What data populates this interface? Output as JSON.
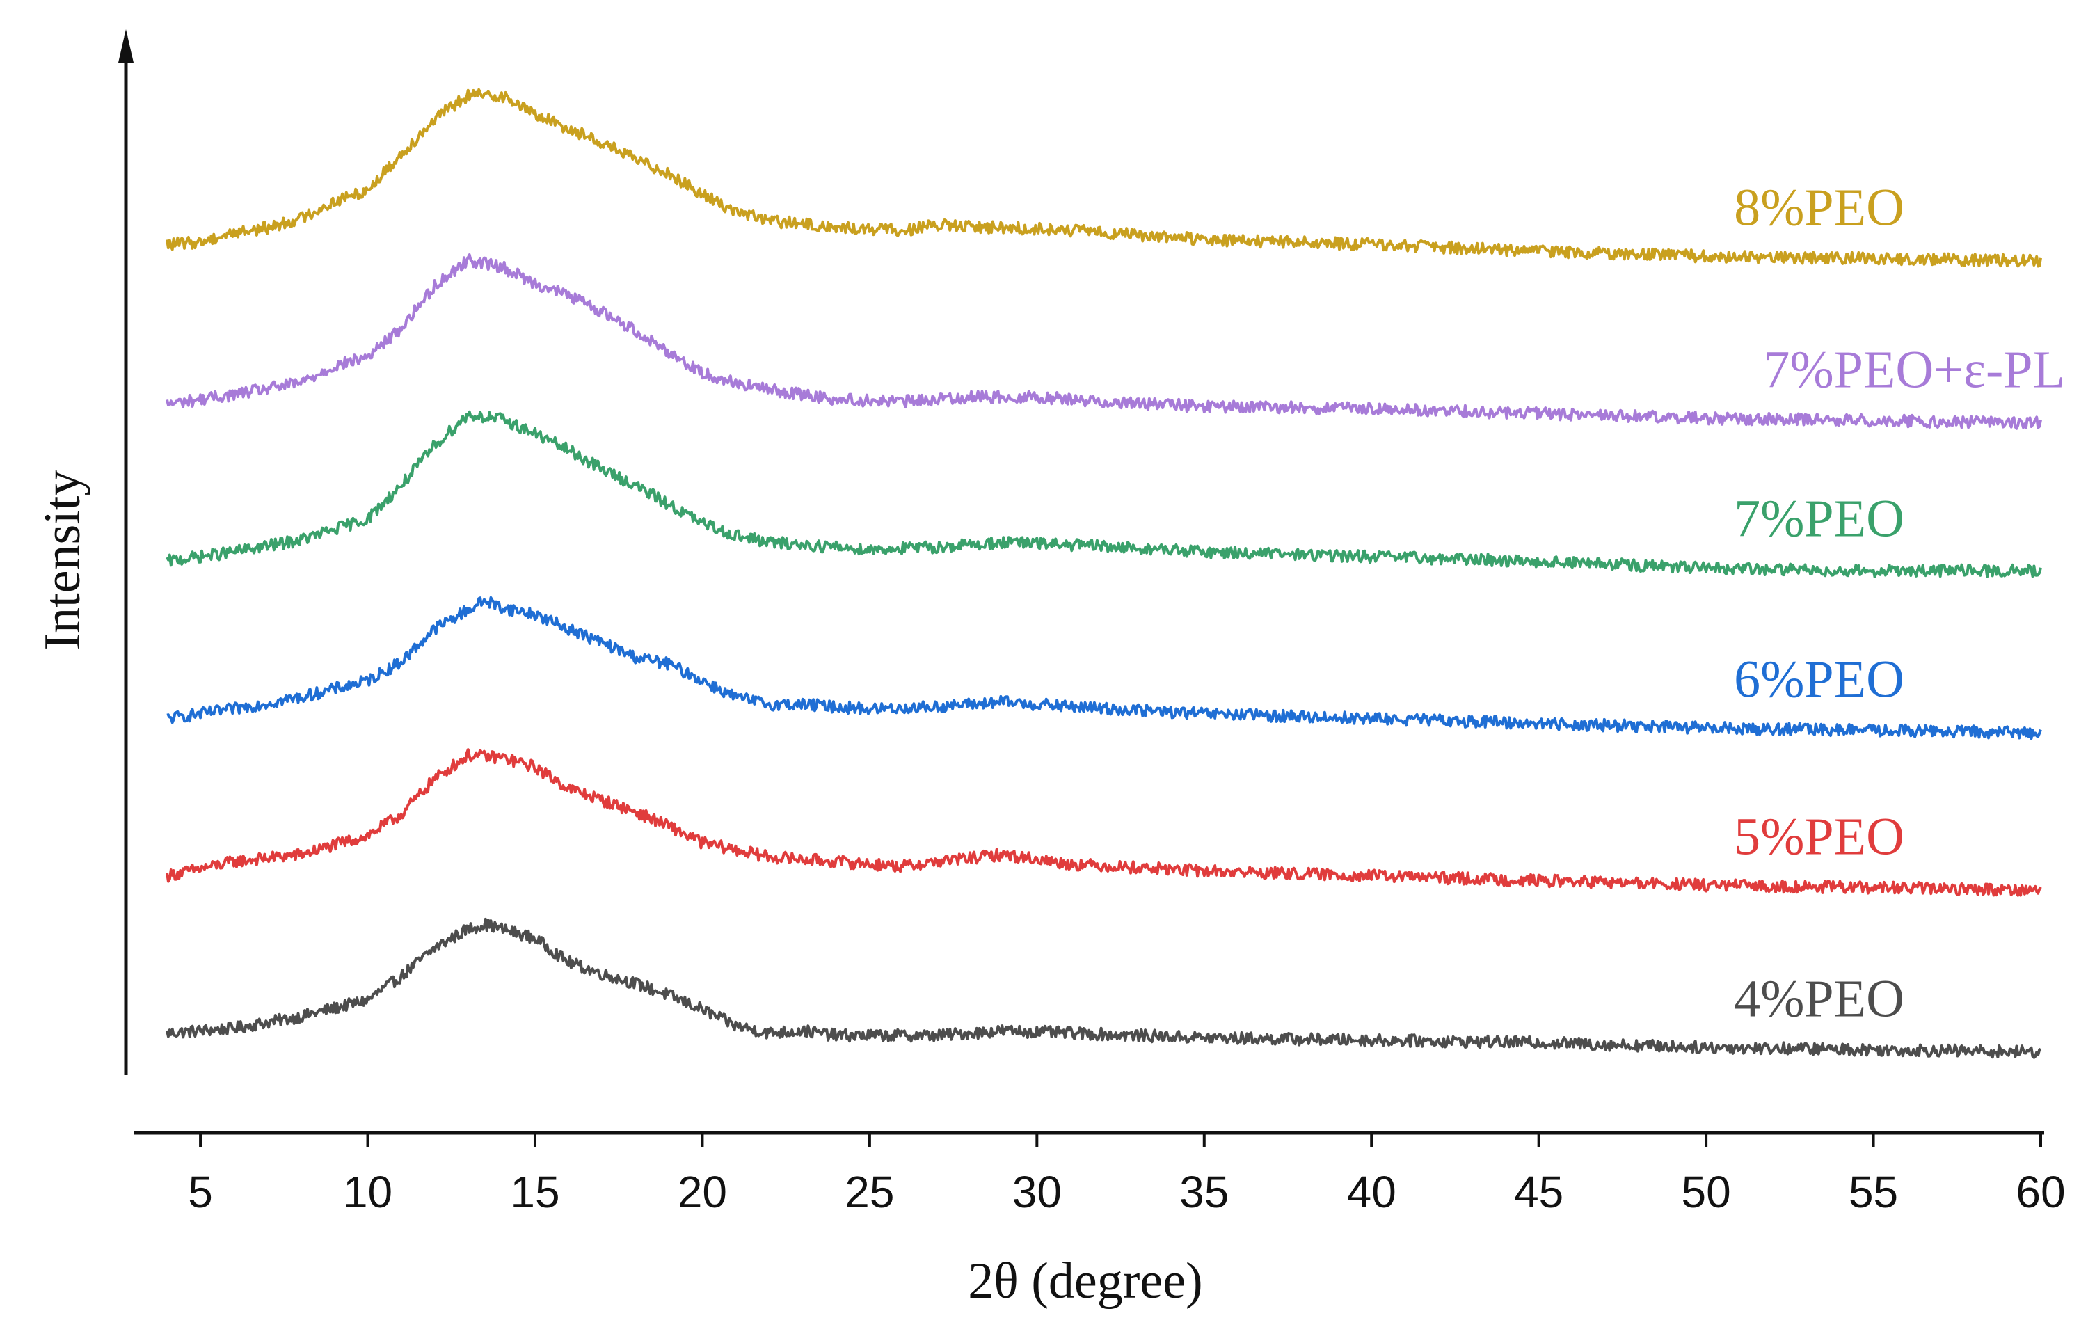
{
  "chart_data": {
    "type": "line",
    "title": "",
    "xlabel": "2θ (degree)",
    "ylabel": "Intensity",
    "xlim": [
      4,
      60
    ],
    "x_ticks": [
      5,
      10,
      15,
      20,
      25,
      30,
      35,
      40,
      45,
      50,
      55,
      60
    ],
    "y_ticks_shown": false,
    "grid": false,
    "legend": "inline-right",
    "series": [
      {
        "name": "4%PEO",
        "color": "#4d4d4d",
        "offset": 0,
        "points": [
          [
            4,
            0.06
          ],
          [
            6,
            0.08
          ],
          [
            8,
            0.13
          ],
          [
            10,
            0.2
          ],
          [
            11,
            0.3
          ],
          [
            12,
            0.42
          ],
          [
            13,
            0.5
          ],
          [
            13.5,
            0.52
          ],
          [
            14,
            0.5
          ],
          [
            15,
            0.46
          ],
          [
            16,
            0.36
          ],
          [
            17,
            0.31
          ],
          [
            18,
            0.27
          ],
          [
            19,
            0.22
          ],
          [
            20,
            0.16
          ],
          [
            21,
            0.09
          ],
          [
            22,
            0.06
          ],
          [
            23,
            0.07
          ],
          [
            24,
            0.05
          ],
          [
            25,
            0.05
          ],
          [
            27,
            0.05
          ],
          [
            29,
            0.07
          ],
          [
            31,
            0.06
          ],
          [
            35,
            0.04
          ],
          [
            40,
            0.03
          ],
          [
            45,
            0.02
          ],
          [
            50,
            0.0
          ],
          [
            55,
            -0.01
          ],
          [
            60,
            -0.02
          ]
        ]
      },
      {
        "name": "5%PEO",
        "color": "#e03c3c",
        "offset": 1,
        "points": [
          [
            4,
            0.06
          ],
          [
            6,
            0.12
          ],
          [
            8,
            0.15
          ],
          [
            10,
            0.23
          ],
          [
            11,
            0.32
          ],
          [
            12,
            0.47
          ],
          [
            13,
            0.57
          ],
          [
            14,
            0.56
          ],
          [
            15,
            0.52
          ],
          [
            16,
            0.43
          ],
          [
            17,
            0.38
          ],
          [
            18,
            0.33
          ],
          [
            19,
            0.27
          ],
          [
            20,
            0.2
          ],
          [
            21,
            0.17
          ],
          [
            22,
            0.14
          ],
          [
            24,
            0.12
          ],
          [
            26,
            0.1
          ],
          [
            27,
            0.12
          ],
          [
            29,
            0.15
          ],
          [
            31,
            0.11
          ],
          [
            35,
            0.08
          ],
          [
            40,
            0.06
          ],
          [
            45,
            0.04
          ],
          [
            50,
            0.02
          ],
          [
            55,
            0.01
          ],
          [
            60,
            0.0
          ]
        ]
      },
      {
        "name": "6%PEO",
        "color": "#1f6ed4",
        "offset": 2,
        "points": [
          [
            4,
            0.06
          ],
          [
            6,
            0.1
          ],
          [
            8,
            0.15
          ],
          [
            10,
            0.22
          ],
          [
            11,
            0.3
          ],
          [
            12,
            0.44
          ],
          [
            13,
            0.52
          ],
          [
            13.5,
            0.56
          ],
          [
            14,
            0.53
          ],
          [
            15,
            0.5
          ],
          [
            16,
            0.44
          ],
          [
            17,
            0.38
          ],
          [
            18,
            0.32
          ],
          [
            19,
            0.29
          ],
          [
            20,
            0.22
          ],
          [
            21,
            0.15
          ],
          [
            22,
            0.12
          ],
          [
            23,
            0.12
          ],
          [
            25,
            0.1
          ],
          [
            27,
            0.11
          ],
          [
            29,
            0.13
          ],
          [
            31,
            0.11
          ],
          [
            35,
            0.08
          ],
          [
            40,
            0.06
          ],
          [
            45,
            0.04
          ],
          [
            50,
            0.02
          ],
          [
            55,
            0.01
          ],
          [
            60,
            0.0
          ]
        ]
      },
      {
        "name": "7%PEO",
        "color": "#3aa16b",
        "offset": 3,
        "points": [
          [
            4,
            0.06
          ],
          [
            6,
            0.1
          ],
          [
            8,
            0.15
          ],
          [
            10,
            0.24
          ],
          [
            11,
            0.38
          ],
          [
            12,
            0.55
          ],
          [
            13,
            0.68
          ],
          [
            14,
            0.66
          ],
          [
            15,
            0.6
          ],
          [
            16,
            0.53
          ],
          [
            17,
            0.45
          ],
          [
            18,
            0.38
          ],
          [
            19,
            0.3
          ],
          [
            20,
            0.22
          ],
          [
            21,
            0.17
          ],
          [
            22,
            0.14
          ],
          [
            23,
            0.13
          ],
          [
            25,
            0.11
          ],
          [
            27,
            0.12
          ],
          [
            29,
            0.14
          ],
          [
            31,
            0.13
          ],
          [
            35,
            0.1
          ],
          [
            40,
            0.08
          ],
          [
            45,
            0.06
          ],
          [
            50,
            0.03
          ],
          [
            55,
            0.02
          ],
          [
            60,
            0.02
          ]
        ]
      },
      {
        "name": "7%PEO+ε-PL",
        "color": "#a77bd8",
        "offset": 4,
        "points": [
          [
            4,
            0.06
          ],
          [
            6,
            0.1
          ],
          [
            8,
            0.15
          ],
          [
            9,
            0.22
          ],
          [
            10,
            0.26
          ],
          [
            11,
            0.38
          ],
          [
            12,
            0.56
          ],
          [
            13,
            0.67
          ],
          [
            14,
            0.64
          ],
          [
            15,
            0.57
          ],
          [
            16,
            0.52
          ],
          [
            17,
            0.45
          ],
          [
            18,
            0.37
          ],
          [
            19,
            0.28
          ],
          [
            20,
            0.19
          ],
          [
            21,
            0.15
          ],
          [
            22,
            0.12
          ],
          [
            24,
            0.08
          ],
          [
            26,
            0.07
          ],
          [
            28,
            0.09
          ],
          [
            30,
            0.09
          ],
          [
            32,
            0.07
          ],
          [
            35,
            0.05
          ],
          [
            40,
            0.04
          ],
          [
            45,
            0.02
          ],
          [
            50,
            0.0
          ],
          [
            55,
            -0.01
          ],
          [
            60,
            -0.02
          ]
        ]
      },
      {
        "name": "8%PEO",
        "color": "#c9a01f",
        "offset": 5,
        "points": [
          [
            4,
            0.07
          ],
          [
            5,
            0.08
          ],
          [
            6,
            0.12
          ],
          [
            7,
            0.14
          ],
          [
            8,
            0.18
          ],
          [
            9,
            0.25
          ],
          [
            10,
            0.3
          ],
          [
            11,
            0.45
          ],
          [
            12,
            0.6
          ],
          [
            13,
            0.7
          ],
          [
            14,
            0.7
          ],
          [
            15,
            0.62
          ],
          [
            16,
            0.56
          ],
          [
            17,
            0.5
          ],
          [
            18,
            0.43
          ],
          [
            19,
            0.37
          ],
          [
            20,
            0.28
          ],
          [
            21,
            0.21
          ],
          [
            22,
            0.17
          ],
          [
            24,
            0.14
          ],
          [
            26,
            0.13
          ],
          [
            27,
            0.15
          ],
          [
            29,
            0.14
          ],
          [
            31,
            0.13
          ],
          [
            35,
            0.09
          ],
          [
            40,
            0.07
          ],
          [
            45,
            0.04
          ],
          [
            50,
            0.02
          ],
          [
            55,
            0.01
          ],
          [
            60,
            0.0
          ]
        ]
      }
    ]
  }
}
